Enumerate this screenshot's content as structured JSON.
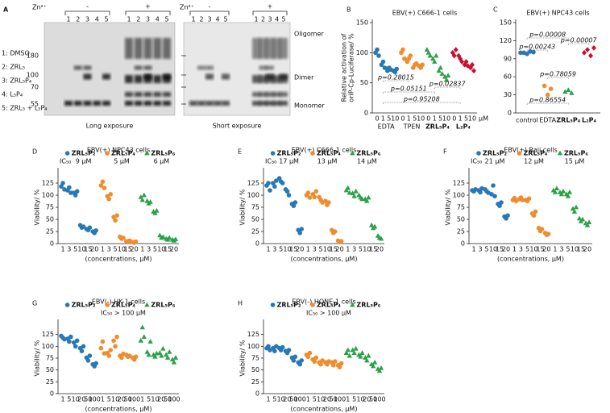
{
  "gel": {
    "panel": "A",
    "zn_label": "Zn²⁺",
    "minus": "-",
    "plus": "+",
    "lanes": [
      "1",
      "2",
      "3",
      "4",
      "5"
    ],
    "legend": [
      "1: DMSO",
      "2: ZRL₅",
      "3: ZRL₅P₄",
      "4: L₅P₄",
      "5: ZRL₅ + L₅P₄"
    ],
    "mw_markers": [
      180,
      100,
      70,
      55
    ],
    "bands": [
      "Oligomer",
      "Dimer",
      "Monomer"
    ],
    "captions": [
      "Long exposure",
      "Short exposure"
    ]
  },
  "chart_data": [
    {
      "panel": "B",
      "type": "dot",
      "title": "EBV(+) C666-1 cells",
      "ylabel": [
        "Relative activation of",
        "oriP-Cp-Luciferase/ %"
      ],
      "ylim": [
        0,
        150
      ],
      "yticks": [
        0,
        50,
        100,
        150
      ],
      "categories": [
        "0",
        "1",
        "5",
        "10"
      ],
      "x_unit": "μM",
      "legend": false,
      "series": [
        {
          "name": "EDTA",
          "color": "#2878b5",
          "marker": "circle",
          "values": [
            [
              100,
              105,
              95
            ],
            [
              80,
              85,
              75
            ],
            [
              70,
              75,
              72
            ],
            [
              70,
              68,
              73
            ]
          ]
        },
        {
          "name": "TPEN",
          "color": "#f08c2c",
          "marker": "circle",
          "values": [
            [
              100,
              105,
              90
            ],
            [
              85,
              90,
              95
            ],
            [
              75,
              80,
              82
            ],
            [
              78,
              75,
              80
            ]
          ]
        },
        {
          "name": "ZRL₅P₄",
          "color": "#2ca048",
          "marker": "triangle",
          "values": [
            [
              105,
              100,
              95
            ],
            [
              90,
              85,
              95
            ],
            [
              70,
              75,
              65
            ],
            [
              60,
              55,
              62
            ]
          ]
        },
        {
          "name": "L₂P₄",
          "color": "#c8102e",
          "marker": "diamond",
          "values": [
            [
              100,
              95,
              105
            ],
            [
              95,
              90,
              85
            ],
            [
              80,
              85,
              78
            ],
            [
              75,
              80,
              70
            ]
          ]
        }
      ],
      "annotations": [
        "p=0.28015",
        "p=0.05151",
        "p=0.02837",
        "p=0.95208"
      ]
    },
    {
      "panel": "C",
      "type": "dot",
      "title": "EBV(+) NPC43 cells",
      "ylim": [
        0,
        150
      ],
      "yticks": [
        0,
        30,
        60,
        90,
        120,
        150
      ],
      "legend": false,
      "series": [
        {
          "name": "control",
          "color": "#2878b5",
          "marker": "circle",
          "values": [
            [
              100,
              100,
              98,
              102,
              101
            ]
          ]
        },
        {
          "name": "EDTA",
          "color": "#f08c2c",
          "marker": "circle",
          "values": [
            [
              45,
              30,
              40
            ]
          ]
        },
        {
          "name": "ZRL₅P₄",
          "color": "#2ca048",
          "marker": "triangle",
          "values": [
            [
              35,
              38,
              33
            ]
          ]
        },
        {
          "name": "L₂P₄",
          "color": "#c8102e",
          "marker": "diamond",
          "values": [
            [
              100,
              105,
              95,
              108
            ]
          ]
        }
      ],
      "annotations": [
        "p=0.00008",
        "p=0.00243",
        "p=0.00007",
        "p=0.78059",
        "p=0.86554"
      ]
    },
    {
      "panel": "D",
      "type": "dot",
      "title": "EBV(+) NPC43 cells",
      "ylabel": [
        "Viability/ %"
      ],
      "xlabel": "(concentrations, μM)",
      "ylim": [
        0,
        150
      ],
      "yticks": [
        0,
        25,
        50,
        75,
        100,
        125
      ],
      "categories": [
        "1",
        "3",
        "5",
        "10",
        "15",
        "20"
      ],
      "legend": true,
      "ic50_label": "IC₅₀",
      "ic50": [
        "9 μM",
        "5 μM",
        "6 μM"
      ],
      "series": [
        {
          "name": "ZRL₅P₂",
          "color": "#2878b5",
          "marker": "circle",
          "values": [
            [
              118,
              125,
              112
            ],
            [
              110,
              116,
              105
            ],
            [
              105,
              100,
              108
            ],
            [
              38,
              33,
              35
            ],
            [
              30,
              28,
              33
            ],
            [
              25,
              22,
              27
            ]
          ]
        },
        {
          "name": "ZRL₅P₄",
          "color": "#f08c2c",
          "marker": "circle",
          "values": [
            [
              120,
              128,
              115
            ],
            [
              98,
              92,
              102
            ],
            [
              55,
              48,
              58
            ],
            [
              14,
              10,
              12
            ],
            [
              5,
              3,
              6
            ],
            [
              3,
              2,
              4
            ]
          ]
        },
        {
          "name": "ZRL₅P₆",
          "color": "#2ca048",
          "marker": "triangle",
          "values": [
            [
              96,
              90,
              100
            ],
            [
              88,
              83,
              86
            ],
            [
              66,
              63,
              68
            ],
            [
              17,
              12,
              14
            ],
            [
              10,
              8,
              12
            ],
            [
              8,
              6,
              9
            ]
          ]
        }
      ]
    },
    {
      "panel": "E",
      "type": "dot",
      "title": "EBV(+) C666-1 cells",
      "ylabel": [
        "Viability/ %"
      ],
      "xlabel": "(concentrations, μM)",
      "ylim": [
        0,
        150
      ],
      "yticks": [
        0,
        25,
        50,
        75,
        100,
        125
      ],
      "categories": [
        "1",
        "3",
        "5",
        "10",
        "15",
        "20"
      ],
      "legend": true,
      "ic50_label": "IC₅₀",
      "ic50": [
        "17 μM",
        "13 μM",
        "14 μM"
      ],
      "series": [
        {
          "name": "ZRL₅P₂",
          "color": "#2878b5",
          "marker": "circle",
          "values": [
            [
              120,
              125,
              110
            ],
            [
              125,
              118,
              130
            ],
            [
              135,
              128,
              125
            ],
            [
              112,
              108,
              100
            ],
            [
              82,
              78,
              85
            ],
            [
              28,
              22,
              30
            ]
          ]
        },
        {
          "name": "ZRL₅P₄",
          "color": "#f08c2c",
          "marker": "circle",
          "values": [
            [
              100,
              105,
              95
            ],
            [
              102,
              96,
              108
            ],
            [
              96,
              90,
              85
            ],
            [
              88,
              80,
              85
            ],
            [
              28,
              22,
              25
            ],
            [
              6,
              3,
              5
            ]
          ]
        },
        {
          "name": "ZRL₅P₆",
          "color": "#2ca048",
          "marker": "triangle",
          "values": [
            [
              110,
              115,
              105
            ],
            [
              104,
              98,
              108
            ],
            [
              100,
              95,
              92
            ],
            [
              92,
              88,
              95
            ],
            [
              38,
              32,
              35
            ],
            [
              16,
              12,
              10
            ]
          ]
        }
      ]
    },
    {
      "panel": "F",
      "type": "dot",
      "title": "EBV(+) Raji cells",
      "ylabel": [
        "Viability/ %"
      ],
      "xlabel": "(concentrations, μM)",
      "ylim": [
        0,
        150
      ],
      "yticks": [
        0,
        25,
        50,
        75,
        100,
        125
      ],
      "categories": [
        "1",
        "3",
        "5",
        "10",
        "15",
        "20"
      ],
      "legend": true,
      "ic50_label": "IC₅₀",
      "ic50": [
        "21 μM",
        "12 μM",
        "15 μM"
      ],
      "series": [
        {
          "name": "ZRL₅P₂",
          "color": "#2878b5",
          "marker": "circle",
          "values": [
            [
              110,
              108,
              112
            ],
            [
              110,
              106,
              114
            ],
            [
              112,
              108,
              105
            ],
            [
              102,
              120,
              98
            ],
            [
              82,
              78,
              85
            ],
            [
              56,
              52,
              58
            ]
          ]
        },
        {
          "name": "ZRL₅P₄",
          "color": "#f08c2c",
          "marker": "circle",
          "values": [
            [
              90,
              94,
              88
            ],
            [
              92,
              95,
              90
            ],
            [
              90,
              88,
              93
            ],
            [
              62,
              58,
              66
            ],
            [
              32,
              26,
              30
            ],
            [
              22,
              18,
              20
            ]
          ]
        },
        {
          "name": "ZRL₅P₆",
          "color": "#2ca048",
          "marker": "triangle",
          "values": [
            [
              110,
              106,
              114
            ],
            [
              106,
              102,
              108
            ],
            [
              102,
              98,
              106
            ],
            [
              72,
              66,
              75
            ],
            [
              52,
              46,
              50
            ],
            [
              42,
              38,
              44
            ]
          ]
        }
      ]
    },
    {
      "panel": "G",
      "type": "dot",
      "title": "EBV(-) HK-1 cells",
      "ylabel": [
        "Viability/ %"
      ],
      "xlabel": "(concentrations, μM)",
      "ylim": [
        0,
        150
      ],
      "yticks": [
        0,
        25,
        50,
        75,
        100,
        125
      ],
      "categories": [
        "1",
        "5",
        "10",
        "20",
        "50",
        "100"
      ],
      "legend": true,
      "ic50_label": "IC₅₀ > 100 μM",
      "series": [
        {
          "name": "ZRL₅P₂",
          "color": "#2878b5",
          "marker": "circle",
          "values": [
            [
              122,
              118,
              115
            ],
            [
              116,
              110,
              120
            ],
            [
              108,
              100,
              112
            ],
            [
              96,
              90,
              100
            ],
            [
              76,
              70,
              80
            ],
            [
              62,
              58,
              64
            ]
          ]
        },
        {
          "name": "ZRL₅P₄",
          "color": "#f08c2c",
          "marker": "circle",
          "values": [
            [
              96,
              110,
              85
            ],
            [
              86,
              80,
              92
            ],
            [
              112,
              100,
              120
            ],
            [
              80,
              76,
              84
            ],
            [
              82,
              78,
              80
            ],
            [
              76,
              72,
              78
            ]
          ]
        },
        {
          "name": "ZRL₅P₆",
          "color": "#2ca048",
          "marker": "triangle",
          "values": [
            [
              112,
              140,
              120
            ],
            [
              88,
              82,
              110
            ],
            [
              82,
              78,
              85
            ],
            [
              86,
              80,
              95
            ],
            [
              82,
              76,
              88
            ],
            [
              72,
              66,
              76
            ]
          ]
        }
      ]
    },
    {
      "panel": "H",
      "type": "dot",
      "title": "EBV(-) HONE-1 cells",
      "ylabel": [
        "Viability/ %"
      ],
      "xlabel": "(concentrations, μM)",
      "ylim": [
        0,
        150
      ],
      "yticks": [
        0,
        25,
        50,
        75,
        100,
        125
      ],
      "categories": [
        "1",
        "5",
        "10",
        "20",
        "50",
        "100"
      ],
      "legend": true,
      "ic50_label": "IC₅₀ > 100 μM",
      "series": [
        {
          "name": "ZRL₅P₂",
          "color": "#2878b5",
          "marker": "circle",
          "values": [
            [
              96,
              100,
              92
            ],
            [
              96,
              90,
              100
            ],
            [
              96,
              92,
              98
            ],
            [
              90,
              86,
              92
            ],
            [
              76,
              70,
              78
            ],
            [
              66,
              62,
              70
            ]
          ]
        },
        {
          "name": "ZRL₅P₄",
          "color": "#f08c2c",
          "marker": "circle",
          "values": [
            [
              82,
              78,
              86
            ],
            [
              72,
              68,
              76
            ],
            [
              66,
              62,
              70
            ],
            [
              66,
              62,
              68
            ],
            [
              66,
              60,
              68
            ],
            [
              60,
              56,
              64
            ]
          ]
        },
        {
          "name": "ZRL₅P₆",
          "color": "#2ca048",
          "marker": "triangle",
          "values": [
            [
              86,
              92,
              80
            ],
            [
              92,
              86,
              95
            ],
            [
              82,
              78,
              86
            ],
            [
              76,
              70,
              80
            ],
            [
              62,
              58,
              66
            ],
            [
              52,
              48,
              54
            ]
          ]
        }
      ]
    }
  ]
}
